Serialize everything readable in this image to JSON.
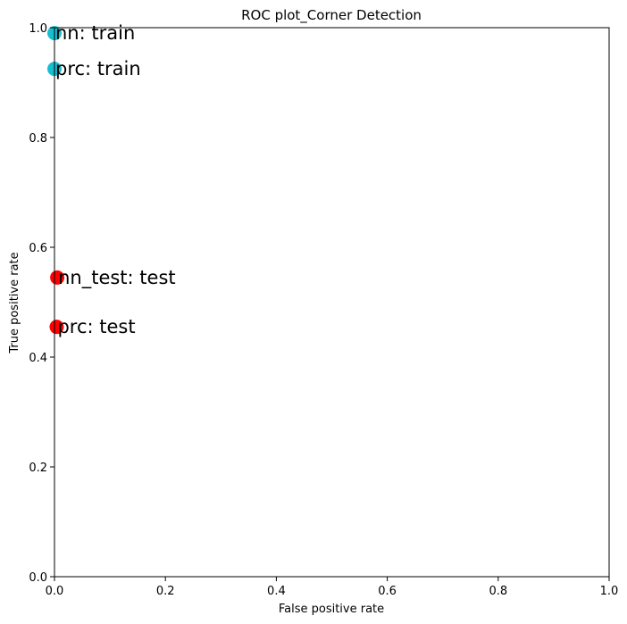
{
  "chart_data": {
    "type": "scatter",
    "title": "ROC plot_Corner Detection",
    "xlabel": "False positive rate",
    "ylabel": "True positive rate",
    "xlim": [
      0,
      1
    ],
    "ylim": [
      0,
      1
    ],
    "xticks": [
      "0.0",
      "0.2",
      "0.4",
      "0.6",
      "0.8",
      "1.0"
    ],
    "yticks": [
      "0.0",
      "0.2",
      "0.4",
      "0.6",
      "0.8",
      "1.0"
    ],
    "grid": false,
    "points": [
      {
        "label": "nn: train",
        "x": 0.0,
        "y": 0.99,
        "color": "#17becf"
      },
      {
        "label": "prc: train",
        "x": 0.0,
        "y": 0.925,
        "color": "#17becf"
      },
      {
        "label": "nn_test: test",
        "x": 0.005,
        "y": 0.545,
        "color": "#ff0000"
      },
      {
        "label": "prc: test",
        "x": 0.004,
        "y": 0.455,
        "color": "#ff0000"
      }
    ]
  }
}
